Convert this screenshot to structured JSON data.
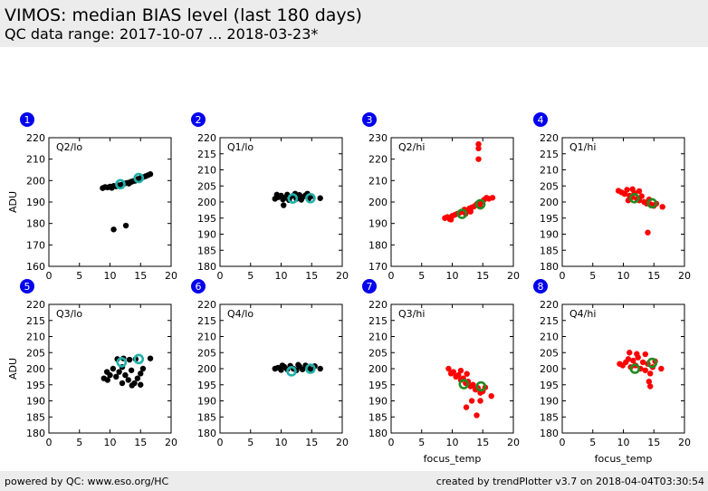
{
  "header": {
    "title": "VIMOS: median BIAS level (last 180 days)",
    "subtitle": "QC data range: 2017-10-07 ... 2018-03-23*"
  },
  "footer": {
    "left": "powered by QC: www.eso.org/HC",
    "right": "created by trendPlotter v3.7 on 2018-04-04T03:30:54"
  },
  "colors": {
    "badge": "#0000ee",
    "black": "#000000",
    "red": "#ff0000",
    "teal": "#20b2aa",
    "green": "#228b22"
  },
  "chart_data": [
    {
      "type": "scatter",
      "number": "1",
      "label": "Q2/lo",
      "xlabel": "",
      "ylabel": "ADU",
      "xlim": [
        0,
        20
      ],
      "ylim": [
        160,
        220
      ],
      "xticks": [
        0,
        5,
        10,
        15,
        20
      ],
      "yticks": [
        160,
        170,
        180,
        190,
        200,
        210,
        220
      ],
      "point_color": "#000000",
      "marker_color": "#20b2aa",
      "points": [
        [
          8.8,
          196.5
        ],
        [
          9.2,
          197
        ],
        [
          9.6,
          196.8
        ],
        [
          10.0,
          197.2
        ],
        [
          10.3,
          196.6
        ],
        [
          10.6,
          197.5
        ],
        [
          11.0,
          197.3
        ],
        [
          11.4,
          197.8
        ],
        [
          11.8,
          198
        ],
        [
          12.2,
          198.4
        ],
        [
          12.6,
          198.8
        ],
        [
          13.0,
          199
        ],
        [
          13.4,
          199.4
        ],
        [
          13.8,
          199.8
        ],
        [
          14.2,
          200.3
        ],
        [
          14.6,
          200.8
        ],
        [
          15.0,
          201.2
        ],
        [
          15.4,
          201.6
        ],
        [
          15.8,
          202
        ],
        [
          16.2,
          202.5
        ],
        [
          16.6,
          203
        ],
        [
          13.1,
          198.6
        ],
        [
          13.6,
          199.5
        ],
        [
          14.1,
          199.9
        ],
        [
          10.6,
          177.2
        ],
        [
          12.6,
          179
        ]
      ],
      "markers": [
        [
          11.7,
          198.3
        ],
        [
          14.7,
          201.2
        ]
      ]
    },
    {
      "type": "scatter",
      "number": "2",
      "label": "Q1/lo",
      "xlabel": "",
      "ylabel": "",
      "xlim": [
        0,
        20
      ],
      "ylim": [
        180,
        220
      ],
      "xticks": [
        0,
        5,
        10,
        15,
        20
      ],
      "yticks": [
        180,
        185,
        190,
        195,
        200,
        205,
        210,
        215,
        220
      ],
      "point_color": "#000000",
      "marker_color": "#20b2aa",
      "points": [
        [
          9.0,
          201
        ],
        [
          9.5,
          201.5
        ],
        [
          10.0,
          202
        ],
        [
          10.5,
          201.2
        ],
        [
          11.0,
          202.3
        ],
        [
          11.5,
          201.6
        ],
        [
          12.0,
          202
        ],
        [
          12.5,
          201
        ],
        [
          13.0,
          202.2
        ],
        [
          13.5,
          201.5
        ],
        [
          14.0,
          202.1
        ],
        [
          14.5,
          201
        ],
        [
          15.0,
          201.8
        ],
        [
          9.3,
          202.3
        ],
        [
          10.3,
          200.8
        ],
        [
          11.3,
          200.6
        ],
        [
          12.3,
          202.6
        ],
        [
          13.3,
          200.7
        ],
        [
          14.3,
          202.6
        ],
        [
          10.4,
          199
        ],
        [
          16.4,
          201.2
        ]
      ],
      "markers": [
        [
          11.9,
          201.1
        ],
        [
          14.8,
          201.2
        ]
      ]
    },
    {
      "type": "scatter",
      "number": "3",
      "label": "Q2/hi",
      "xlabel": "",
      "ylabel": "",
      "xlim": [
        0,
        20
      ],
      "ylim": [
        170,
        230
      ],
      "xticks": [
        0,
        5,
        10,
        15,
        20
      ],
      "yticks": [
        170,
        180,
        190,
        200,
        210,
        220,
        230
      ],
      "point_color": "#ff0000",
      "marker_color": "#228b22",
      "points": [
        [
          8.8,
          192.5
        ],
        [
          9.2,
          193
        ],
        [
          9.6,
          192
        ],
        [
          10.0,
          193.5
        ],
        [
          10.4,
          194
        ],
        [
          10.8,
          194.5
        ],
        [
          11.2,
          195
        ],
        [
          11.6,
          195.5
        ],
        [
          12.0,
          196.5
        ],
        [
          12.4,
          196
        ],
        [
          12.8,
          197
        ],
        [
          13.2,
          197.5
        ],
        [
          13.6,
          198
        ],
        [
          14.0,
          199
        ],
        [
          14.4,
          199.5
        ],
        [
          14.8,
          200
        ],
        [
          15.2,
          201
        ],
        [
          15.6,
          202
        ],
        [
          16.0,
          201.5
        ],
        [
          16.6,
          202
        ],
        [
          12.2,
          194.5
        ],
        [
          13.0,
          195.5
        ],
        [
          14.6,
          197.8
        ],
        [
          9.8,
          191.8
        ],
        [
          14.3,
          227
        ],
        [
          14.3,
          225
        ],
        [
          14.3,
          220
        ]
      ],
      "markers": [
        [
          11.6,
          194.5
        ],
        [
          14.6,
          199
        ]
      ]
    },
    {
      "type": "scatter",
      "number": "4",
      "label": "Q1/hi",
      "xlabel": "",
      "ylabel": "",
      "xlim": [
        0,
        20
      ],
      "ylim": [
        180,
        220
      ],
      "xticks": [
        0,
        5,
        10,
        15,
        20
      ],
      "yticks": [
        180,
        185,
        190,
        195,
        200,
        205,
        210,
        215,
        220
      ],
      "point_color": "#ff0000",
      "marker_color": "#228b22",
      "points": [
        [
          9.2,
          203.5
        ],
        [
          9.7,
          203
        ],
        [
          10.2,
          202.5
        ],
        [
          10.6,
          203.8
        ],
        [
          11.0,
          202
        ],
        [
          11.4,
          201.5
        ],
        [
          11.8,
          202.8
        ],
        [
          12.2,
          201
        ],
        [
          12.6,
          200.5
        ],
        [
          13.0,
          201.8
        ],
        [
          13.4,
          200
        ],
        [
          13.8,
          199.5
        ],
        [
          14.2,
          200.8
        ],
        [
          14.6,
          199.2
        ],
        [
          15.0,
          198.8
        ],
        [
          15.4,
          199.5
        ],
        [
          16.4,
          198.5
        ],
        [
          11.5,
          204
        ],
        [
          12.6,
          203.4
        ],
        [
          10.8,
          200.5
        ],
        [
          14.0,
          190.5
        ]
      ],
      "markers": [
        [
          11.8,
          201.2
        ],
        [
          14.7,
          199.6
        ]
      ]
    },
    {
      "type": "scatter",
      "number": "5",
      "label": "Q3/lo",
      "xlabel": "",
      "ylabel": "ADU",
      "xlim": [
        0,
        20
      ],
      "ylim": [
        180,
        220
      ],
      "xticks": [
        0,
        5,
        10,
        15,
        20
      ],
      "yticks": [
        180,
        185,
        190,
        195,
        200,
        205,
        210,
        215,
        220
      ],
      "point_color": "#000000",
      "marker_color": "#20b2aa",
      "points": [
        [
          9.0,
          197
        ],
        [
          9.5,
          199
        ],
        [
          10.0,
          198
        ],
        [
          10.5,
          200
        ],
        [
          11.0,
          197.5
        ],
        [
          11.5,
          199
        ],
        [
          12.0,
          200.5
        ],
        [
          12.5,
          198
        ],
        [
          13.0,
          196.5
        ],
        [
          13.5,
          199.5
        ],
        [
          14.0,
          195.5
        ],
        [
          14.5,
          197
        ],
        [
          15.0,
          198.5
        ],
        [
          15.4,
          200
        ],
        [
          11.2,
          203
        ],
        [
          12.2,
          203.2
        ],
        [
          13.2,
          202.8
        ],
        [
          14.2,
          203
        ],
        [
          12.0,
          195.5
        ],
        [
          13.6,
          194.8
        ],
        [
          15.0,
          195
        ],
        [
          9.6,
          196.5
        ],
        [
          16.6,
          203.2
        ]
      ],
      "markers": [
        [
          11.9,
          202
        ],
        [
          14.7,
          203
        ]
      ]
    },
    {
      "type": "scatter",
      "number": "6",
      "label": "Q4/lo",
      "xlabel": "",
      "ylabel": "",
      "xlim": [
        0,
        20
      ],
      "ylim": [
        180,
        220
      ],
      "xticks": [
        0,
        5,
        10,
        15,
        20
      ],
      "yticks": [
        180,
        185,
        190,
        195,
        200,
        205,
        210,
        215,
        220
      ],
      "point_color": "#000000",
      "marker_color": "#20b2aa",
      "points": [
        [
          9.0,
          200
        ],
        [
          9.5,
          200.3
        ],
        [
          10.0,
          199.6
        ],
        [
          10.5,
          200.6
        ],
        [
          11.0,
          199.8
        ],
        [
          11.5,
          200.9
        ],
        [
          12.0,
          200
        ],
        [
          12.5,
          199.5
        ],
        [
          13.0,
          200.7
        ],
        [
          13.5,
          199.8
        ],
        [
          14.0,
          201
        ],
        [
          14.5,
          200.3
        ],
        [
          15.0,
          199.6
        ],
        [
          15.5,
          200.8
        ],
        [
          16.4,
          200
        ],
        [
          10.2,
          201
        ],
        [
          12.8,
          201.2
        ]
      ],
      "markers": [
        [
          11.7,
          199.2
        ],
        [
          14.8,
          200
        ]
      ]
    },
    {
      "type": "scatter",
      "number": "7",
      "label": "Q3/hi",
      "xlabel": "focus_temp",
      "ylabel": "",
      "xlim": [
        0,
        20
      ],
      "ylim": [
        180,
        220
      ],
      "xticks": [
        0,
        5,
        10,
        15,
        20
      ],
      "yticks": [
        180,
        185,
        190,
        195,
        200,
        205,
        210,
        215,
        220
      ],
      "point_color": "#ff0000",
      "marker_color": "#228b22",
      "points": [
        [
          9.4,
          200
        ],
        [
          9.8,
          198.5
        ],
        [
          10.2,
          199
        ],
        [
          10.6,
          197.5
        ],
        [
          11.0,
          198
        ],
        [
          11.4,
          196.5
        ],
        [
          11.8,
          197
        ],
        [
          12.2,
          195.5
        ],
        [
          12.6,
          196
        ],
        [
          13.0,
          194.5
        ],
        [
          13.4,
          195
        ],
        [
          13.8,
          193.5
        ],
        [
          14.2,
          194
        ],
        [
          14.6,
          192.5
        ],
        [
          15.0,
          193
        ],
        [
          15.4,
          194.2
        ],
        [
          11.4,
          199.4
        ],
        [
          12.4,
          198.4
        ],
        [
          13.2,
          190
        ],
        [
          12.3,
          188
        ],
        [
          14.6,
          190
        ],
        [
          16.4,
          191.5
        ],
        [
          14.0,
          185.5
        ]
      ],
      "markers": [
        [
          11.9,
          195.2
        ],
        [
          14.7,
          194.5
        ]
      ]
    },
    {
      "type": "scatter",
      "number": "8",
      "label": "Q4/hi",
      "xlabel": "focus_temp",
      "ylabel": "",
      "xlim": [
        0,
        20
      ],
      "ylim": [
        180,
        220
      ],
      "xticks": [
        0,
        5,
        10,
        15,
        20
      ],
      "yticks": [
        180,
        185,
        190,
        195,
        200,
        205,
        210,
        215,
        220
      ],
      "point_color": "#ff0000",
      "marker_color": "#228b22",
      "points": [
        [
          9.4,
          201.5
        ],
        [
          9.9,
          201
        ],
        [
          10.4,
          202
        ],
        [
          10.8,
          203
        ],
        [
          11.2,
          200.5
        ],
        [
          11.6,
          202.5
        ],
        [
          12.0,
          201
        ],
        [
          12.4,
          203.5
        ],
        [
          12.8,
          200
        ],
        [
          13.2,
          202
        ],
        [
          13.6,
          199.5
        ],
        [
          14.0,
          201.5
        ],
        [
          14.4,
          198.5
        ],
        [
          14.8,
          200.5
        ],
        [
          15.2,
          202.3
        ],
        [
          16.2,
          200
        ],
        [
          11.0,
          205
        ],
        [
          12.2,
          204.6
        ],
        [
          13.6,
          204.5
        ],
        [
          14.2,
          196
        ],
        [
          14.4,
          194.5
        ]
      ],
      "markers": [
        [
          11.9,
          200
        ],
        [
          14.7,
          201.8
        ]
      ]
    }
  ]
}
